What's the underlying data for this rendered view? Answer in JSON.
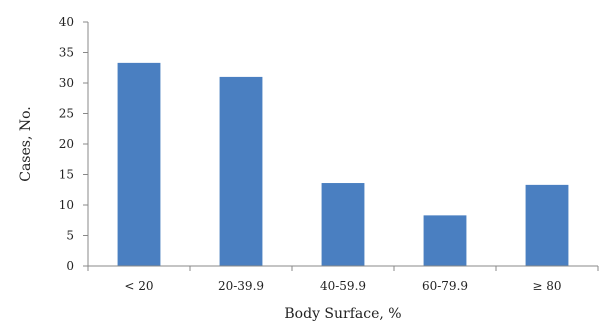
{
  "chart_data": {
    "type": "bar",
    "categories": [
      "< 20",
      "20-39.9",
      "40-59.9",
      "60-79.9",
      "≥ 80"
    ],
    "values": [
      33.3,
      31.0,
      13.6,
      8.3,
      13.3
    ],
    "title": "",
    "xlabel": "Body Surface, %",
    "ylabel": "Cases, No.",
    "ylim": [
      0,
      40
    ],
    "yticks": [
      "0",
      "5",
      "10",
      "15",
      "20",
      "25",
      "30",
      "35",
      "40"
    ],
    "bar_color": "#4a7fc1",
    "grid": false,
    "legend": "none"
  }
}
